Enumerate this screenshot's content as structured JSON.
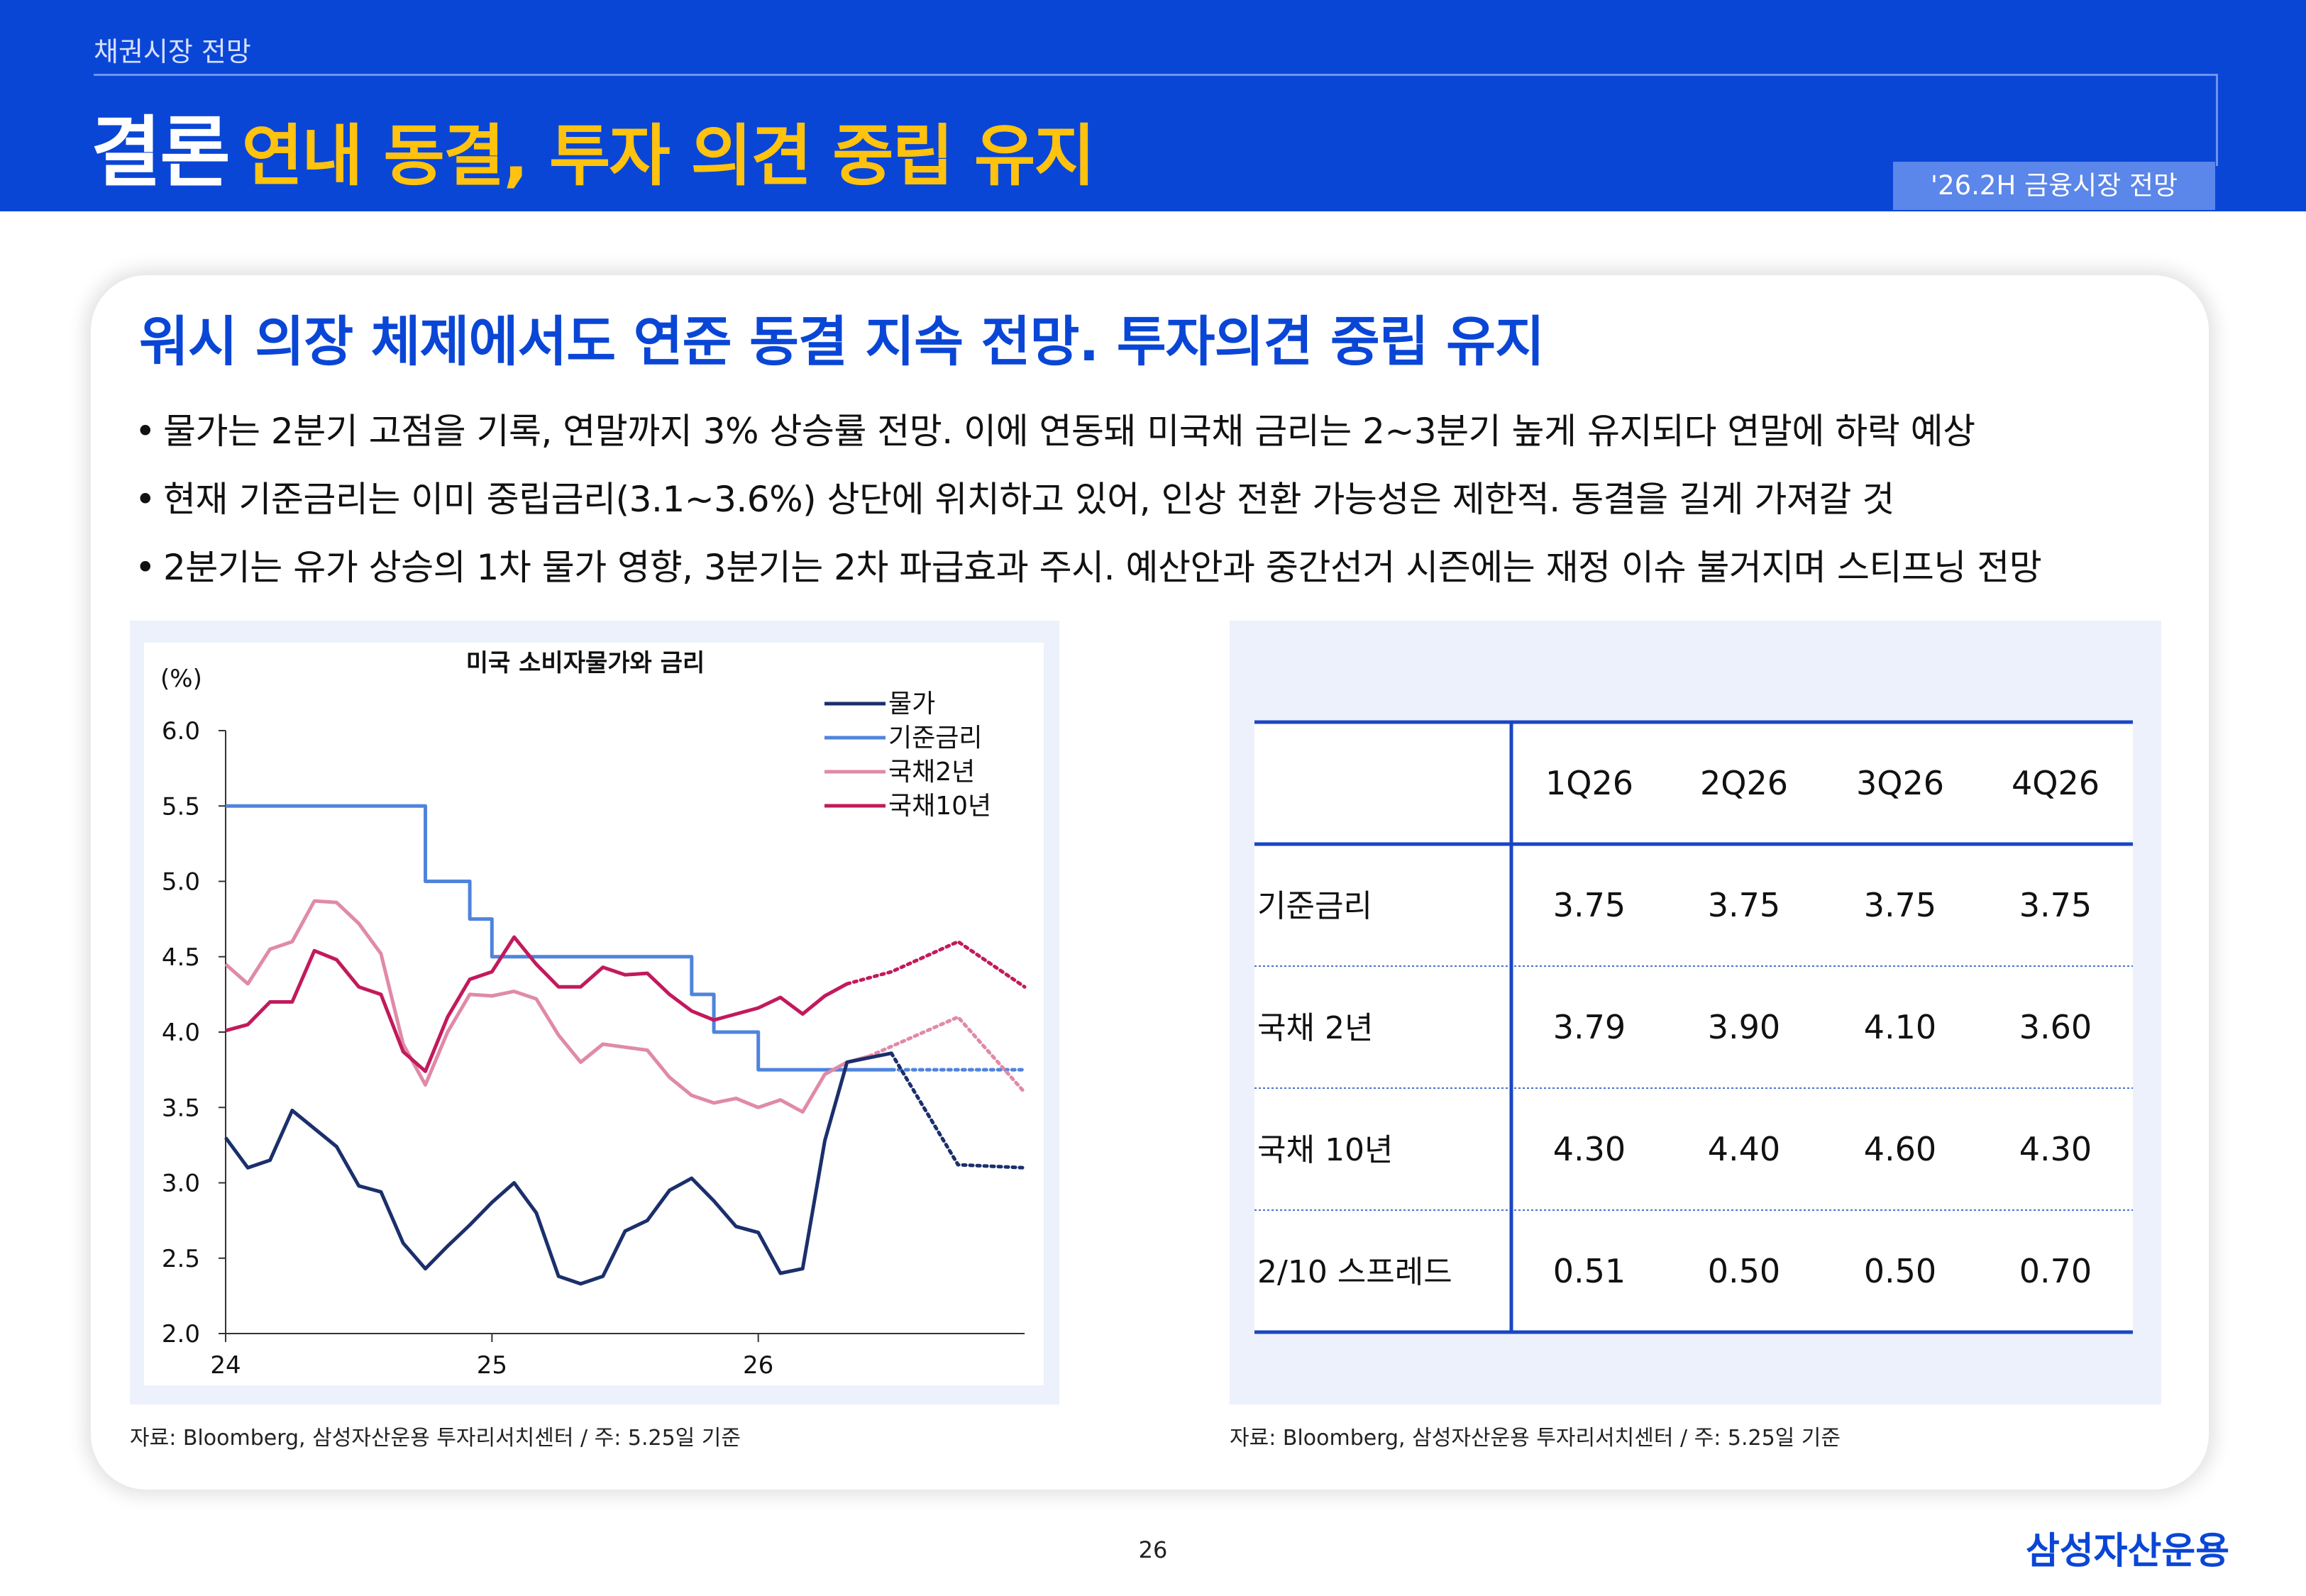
{
  "header": {
    "breadcrumb": "채권시장 전망",
    "title_main": "결론",
    "title_highlight": "연내 동결, 투자 의견 중립 유지",
    "tag": "'26.2H 금융시장 전망"
  },
  "card": {
    "title": "워시 의장 체제에서도 연준 동결 지속 전망. 투자의견 중립 유지",
    "bullets": [
      "물가는 2분기 고점을 기록, 연말까지 3% 상승률 전망. 이에 연동돼 미국채 금리는 2~3분기 높게 유지되다 연말에 하락 예상",
      "현재 기준금리는 이미 중립금리(3.1~3.6%) 상단에 위치하고 있어, 인상 전환 가능성은 제한적. 동결을 길게 가져갈 것",
      "2분기는 유가 상승의 1차 물가 영향, 3분기는 2차 파급효과 주시. 예산안과 중간선거 시즌에는 재정 이슈 불거지며 스티프닝 전망"
    ],
    "bullet_symbol": "•"
  },
  "colors": {
    "brand_blue": "#0a46d6",
    "title_yellow": "#ffc20e",
    "cpi": "#1b2f6b",
    "policy_rate": "#4f84dc",
    "ust_2y": "#e08aa8",
    "ust_10y": "#c21a5c"
  },
  "chart_data": {
    "type": "line",
    "title": "미국 소비자물가와 금리",
    "unit_label": "(%)",
    "ylim": [
      2.0,
      6.0
    ],
    "yticks": [
      "6.0",
      "5.5",
      "5.0",
      "4.5",
      "4.0",
      "3.5",
      "3.0",
      "2.5",
      "2.0"
    ],
    "xticks": [
      "24",
      "25",
      "26"
    ],
    "x_domain": [
      "2024-01",
      "2026-12"
    ],
    "grid": false,
    "legend_position": "top-right",
    "series": [
      {
        "name": "물가",
        "color": "#1b2f6b",
        "actual": [
          [
            0,
            3.3
          ],
          [
            1,
            3.1
          ],
          [
            2,
            3.15
          ],
          [
            3,
            3.48
          ],
          [
            4,
            3.36
          ],
          [
            5,
            3.24
          ],
          [
            6,
            2.98
          ],
          [
            7,
            2.94
          ],
          [
            8,
            2.6
          ],
          [
            9,
            2.43
          ],
          [
            10,
            2.58
          ],
          [
            11,
            2.72
          ],
          [
            12,
            2.87
          ],
          [
            13,
            3.0
          ],
          [
            14,
            2.8
          ],
          [
            15,
            2.38
          ],
          [
            16,
            2.33
          ],
          [
            17,
            2.38
          ],
          [
            18,
            2.68
          ],
          [
            19,
            2.75
          ],
          [
            20,
            2.95
          ],
          [
            21,
            3.03
          ],
          [
            22,
            2.88
          ],
          [
            23,
            2.71
          ],
          [
            24,
            2.67
          ],
          [
            25,
            2.4
          ],
          [
            26,
            2.43
          ],
          [
            27,
            3.28
          ],
          [
            28,
            3.8
          ],
          [
            29,
            3.83
          ],
          [
            30,
            3.86
          ]
        ],
        "forecast": [
          [
            30,
            3.86
          ],
          [
            33,
            3.12
          ],
          [
            36,
            3.1
          ]
        ]
      },
      {
        "name": "기준금리",
        "color": "#4f84dc",
        "actual": [
          [
            0,
            5.5
          ],
          [
            9,
            5.5
          ],
          [
            9,
            5.0
          ],
          [
            11,
            5.0
          ],
          [
            11,
            4.75
          ],
          [
            12,
            4.75
          ],
          [
            12,
            4.5
          ],
          [
            21,
            4.5
          ],
          [
            21,
            4.25
          ],
          [
            22,
            4.25
          ],
          [
            22,
            4.0
          ],
          [
            24,
            4.0
          ],
          [
            24,
            3.75
          ],
          [
            30,
            3.75
          ]
        ],
        "forecast": [
          [
            30,
            3.75
          ],
          [
            36,
            3.75
          ]
        ]
      },
      {
        "name": "국채2년",
        "color": "#e08aa8",
        "actual": [
          [
            0,
            4.45
          ],
          [
            1,
            4.32
          ],
          [
            2,
            4.55
          ],
          [
            3,
            4.6
          ],
          [
            4,
            4.87
          ],
          [
            5,
            4.86
          ],
          [
            6,
            4.72
          ],
          [
            7,
            4.52
          ],
          [
            8,
            3.92
          ],
          [
            9,
            3.65
          ],
          [
            10,
            4.0
          ],
          [
            11,
            4.25
          ],
          [
            12,
            4.24
          ],
          [
            13,
            4.27
          ],
          [
            14,
            4.22
          ],
          [
            15,
            3.98
          ],
          [
            16,
            3.8
          ],
          [
            17,
            3.92
          ],
          [
            18,
            3.9
          ],
          [
            19,
            3.88
          ],
          [
            20,
            3.7
          ],
          [
            21,
            3.58
          ],
          [
            22,
            3.53
          ],
          [
            23,
            3.56
          ],
          [
            24,
            3.5
          ],
          [
            25,
            3.55
          ],
          [
            26,
            3.47
          ],
          [
            27,
            3.72
          ],
          [
            28,
            3.8
          ],
          [
            29,
            3.84
          ]
        ],
        "forecast": [
          [
            29,
            3.84
          ],
          [
            33,
            4.1
          ],
          [
            36,
            3.6
          ]
        ]
      },
      {
        "name": "국채10년",
        "color": "#c21a5c",
        "actual": [
          [
            0,
            4.01
          ],
          [
            1,
            4.05
          ],
          [
            2,
            4.2
          ],
          [
            3,
            4.2
          ],
          [
            4,
            4.54
          ],
          [
            5,
            4.48
          ],
          [
            6,
            4.3
          ],
          [
            7,
            4.25
          ],
          [
            8,
            3.87
          ],
          [
            9,
            3.74
          ],
          [
            10,
            4.1
          ],
          [
            11,
            4.35
          ],
          [
            12,
            4.4
          ],
          [
            13,
            4.63
          ],
          [
            14,
            4.45
          ],
          [
            15,
            4.3
          ],
          [
            16,
            4.3
          ],
          [
            17,
            4.43
          ],
          [
            18,
            4.38
          ],
          [
            19,
            4.39
          ],
          [
            20,
            4.25
          ],
          [
            21,
            4.14
          ],
          [
            22,
            4.08
          ],
          [
            23,
            4.12
          ],
          [
            24,
            4.16
          ],
          [
            25,
            4.23
          ],
          [
            26,
            4.12
          ],
          [
            27,
            4.24
          ],
          [
            28,
            4.32
          ]
        ],
        "forecast": [
          [
            28,
            4.32
          ],
          [
            30,
            4.4
          ],
          [
            33,
            4.6
          ],
          [
            36,
            4.3
          ]
        ]
      }
    ]
  },
  "table": {
    "columns": [
      "1Q26",
      "2Q26",
      "3Q26",
      "4Q26"
    ],
    "rows": [
      {
        "label": "기준금리",
        "values": [
          "3.75",
          "3.75",
          "3.75",
          "3.75"
        ]
      },
      {
        "label": "국채 2년",
        "values": [
          "3.79",
          "3.90",
          "4.10",
          "3.60"
        ]
      },
      {
        "label": "국채 10년",
        "values": [
          "4.30",
          "4.40",
          "4.60",
          "4.30"
        ]
      },
      {
        "label": "2/10 스프레드",
        "values": [
          "0.51",
          "0.50",
          "0.50",
          "0.70"
        ]
      }
    ]
  },
  "sources": {
    "left": "자료: Bloomberg, 삼성자산운용 투자리서치센터 / 주: 5.25일 기준",
    "right": "자료: Bloomberg, 삼성자산운용 투자리서치센터 / 주: 5.25일 기준"
  },
  "footer": {
    "page": "26",
    "logo": "삼성자산운용"
  }
}
